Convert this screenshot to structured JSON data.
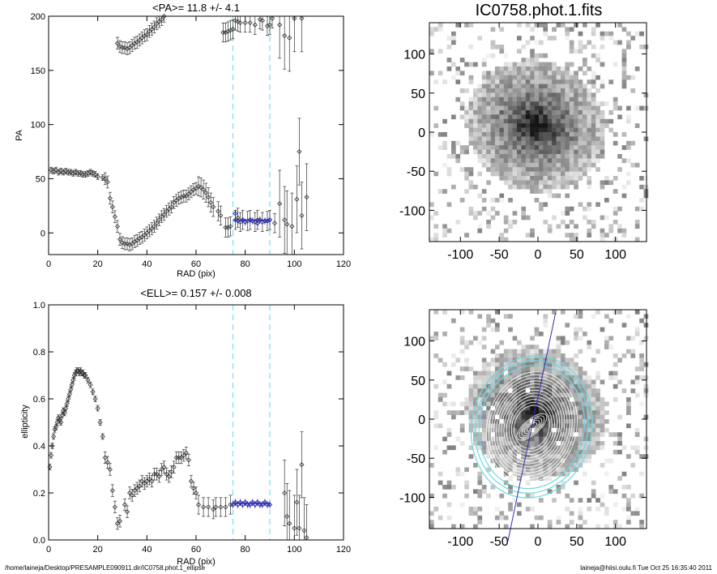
{
  "footer": {
    "path": "/home/laineja/Desktop/PRESAMPLE090911.dir/IC0758.phot.1_ellipse",
    "stamp": "laineja@hiisi.oulu.fi  Tue Oct 25 16:35:40 2011"
  },
  "colors": {
    "window_lines": "#7fe3f0",
    "fit_points": "#3030b0",
    "data_points": "#333333",
    "ellipse_contours": "#ffffff",
    "outer_ellipses": "#6fd8e0"
  },
  "chart_data": [
    {
      "id": "pa",
      "type": "scatter",
      "title": "<PA>=  11.8 +/-   4.1",
      "xlabel": "RAD (pix)",
      "ylabel": "PA",
      "xlim": [
        0,
        120
      ],
      "ylim": [
        -20,
        200
      ],
      "xticks": [
        0,
        20,
        40,
        60,
        80,
        100,
        120
      ],
      "yticks": [
        0,
        50,
        100,
        150,
        200
      ],
      "window": [
        75,
        90
      ],
      "mean": 11.8,
      "series": [
        {
          "points": [
            [
              1,
              58
            ],
            [
              2,
              57
            ],
            [
              3,
              58
            ],
            [
              4,
              56
            ],
            [
              5,
              57
            ],
            [
              6,
              56
            ],
            [
              7,
              57
            ],
            [
              8,
              56
            ],
            [
              9,
              56
            ],
            [
              10,
              55
            ],
            [
              11,
              56
            ],
            [
              12,
              55
            ],
            [
              13,
              55
            ],
            [
              14,
              54
            ],
            [
              15,
              54
            ],
            [
              16,
              55
            ],
            [
              17,
              56
            ],
            [
              18,
              55
            ],
            [
              19,
              54
            ],
            [
              20,
              52
            ],
            [
              22,
              51
            ],
            [
              23,
              50
            ],
            [
              24,
              47
            ],
            [
              25,
              32
            ],
            [
              26,
              24
            ],
            [
              27,
              15
            ],
            [
              28,
              6
            ],
            [
              29,
              -6
            ],
            [
              30,
              -9
            ],
            [
              31,
              -10
            ],
            [
              32,
              -10
            ],
            [
              33,
              -11
            ],
            [
              34,
              -10
            ],
            [
              35,
              -8
            ],
            [
              36,
              -7
            ],
            [
              37,
              -5
            ],
            [
              38,
              -4
            ],
            [
              39,
              -2
            ],
            [
              40,
              0
            ],
            [
              41,
              2
            ],
            [
              42,
              4
            ],
            [
              43,
              6
            ],
            [
              44,
              9
            ],
            [
              45,
              12
            ],
            [
              46,
              15
            ],
            [
              47,
              17
            ],
            [
              48,
              20
            ],
            [
              49,
              22
            ],
            [
              50,
              24
            ],
            [
              51,
              28
            ],
            [
              52,
              30
            ],
            [
              53,
              32
            ],
            [
              54,
              33
            ],
            [
              55,
              34
            ],
            [
              56,
              34
            ],
            [
              57,
              36
            ],
            [
              58,
              38
            ],
            [
              59,
              40
            ],
            [
              60,
              41
            ],
            [
              61,
              43
            ],
            [
              62,
              42
            ],
            [
              63,
              40
            ],
            [
              64,
              37
            ],
            [
              65,
              33
            ],
            [
              66,
              28
            ],
            [
              67,
              24
            ],
            [
              69,
              20
            ],
            [
              70,
              16
            ],
            [
              72,
              5
            ],
            [
              73,
              5
            ],
            [
              74,
              6
            ],
            [
              76,
              12
            ],
            [
              77,
              14
            ],
            [
              78,
              10
            ],
            [
              79,
              12
            ],
            [
              81,
              11
            ],
            [
              82,
              12
            ],
            [
              84,
              10
            ],
            [
              85,
              12
            ],
            [
              87,
              10
            ],
            [
              89,
              11
            ],
            [
              90,
              12
            ],
            [
              92,
              9
            ],
            [
              94,
              27
            ],
            [
              96,
              12
            ],
            [
              97,
              8
            ],
            [
              99,
              6
            ],
            [
              101,
              31
            ],
            [
              102,
              75
            ],
            [
              103,
              16
            ],
            [
              105,
              33
            ],
            [
              28,
              175
            ],
            [
              29,
              172
            ],
            [
              30,
              171
            ],
            [
              31,
              171
            ],
            [
              32,
              170
            ],
            [
              33,
              171
            ],
            [
              34,
              173
            ],
            [
              35,
              175
            ],
            [
              36,
              176
            ],
            [
              37,
              178
            ],
            [
              38,
              180
            ],
            [
              39,
              182
            ],
            [
              40,
              183
            ],
            [
              41,
              186
            ],
            [
              42,
              188
            ],
            [
              43,
              190
            ],
            [
              44,
              193
            ],
            [
              45,
              195
            ],
            [
              46,
              197
            ],
            [
              47,
              200
            ],
            [
              71,
              185
            ],
            [
              72,
              185
            ],
            [
              73,
              186
            ],
            [
              74,
              187
            ],
            [
              75,
              188
            ],
            [
              76,
              196
            ],
            [
              77,
              195
            ],
            [
              78,
              194
            ],
            [
              80,
              194
            ],
            [
              82,
              194
            ],
            [
              84,
              192
            ],
            [
              86,
              197
            ],
            [
              87,
              196
            ],
            [
              89,
              191
            ],
            [
              90,
              192
            ],
            [
              91,
              198
            ],
            [
              94,
              192
            ],
            [
              96,
              182
            ],
            [
              98,
              180
            ],
            [
              100,
              198
            ],
            [
              103,
              198
            ]
          ]
        },
        {
          "name": "fit",
          "points": [
            [
              76,
              18
            ],
            [
              77,
              11
            ],
            [
              79,
              12
            ],
            [
              80,
              10
            ],
            [
              82,
              12
            ],
            [
              83,
              11
            ],
            [
              85,
              9
            ],
            [
              86,
              12
            ],
            [
              88,
              11
            ],
            [
              89,
              11
            ],
            [
              90,
              12
            ]
          ]
        }
      ]
    },
    {
      "id": "ell",
      "type": "scatter",
      "title": "<ELL>= 0.157 +/-  0.008",
      "xlabel": "RAD (pix)",
      "ylabel": "ellipticity",
      "xlim": [
        0,
        120
      ],
      "ylim": [
        0,
        1
      ],
      "xticks": [
        0,
        20,
        40,
        60,
        80,
        100,
        120
      ],
      "yticks": [
        "0.0",
        "0.2",
        "0.4",
        "0.6",
        "0.8",
        "1.0"
      ],
      "window": [
        75,
        90
      ],
      "mean": 0.157,
      "series": [
        {
          "points": [
            [
              0.5,
              0.31
            ],
            [
              1,
              0.36
            ],
            [
              1.5,
              0.4
            ],
            [
              2,
              0.44
            ],
            [
              2.5,
              0.47
            ],
            [
              3,
              0.48
            ],
            [
              3.5,
              0.5
            ],
            [
              4,
              0.52
            ],
            [
              4.5,
              0.51
            ],
            [
              5,
              0.5
            ],
            [
              5.5,
              0.53
            ],
            [
              6,
              0.55
            ],
            [
              6.5,
              0.54
            ],
            [
              7,
              0.56
            ],
            [
              7.5,
              0.58
            ],
            [
              8,
              0.6
            ],
            [
              8.5,
              0.62
            ],
            [
              9,
              0.64
            ],
            [
              9.5,
              0.66
            ],
            [
              10,
              0.68
            ],
            [
              10.5,
              0.7
            ],
            [
              11,
              0.71
            ],
            [
              11.5,
              0.72
            ],
            [
              12,
              0.72
            ],
            [
              12.5,
              0.71
            ],
            [
              13,
              0.72
            ],
            [
              13.5,
              0.71
            ],
            [
              14,
              0.71
            ],
            [
              14.5,
              0.7
            ],
            [
              15,
              0.7
            ],
            [
              16,
              0.68
            ],
            [
              17,
              0.66
            ],
            [
              18,
              0.63
            ],
            [
              19,
              0.6
            ],
            [
              20,
              0.56
            ],
            [
              21,
              0.5
            ],
            [
              22,
              0.44
            ],
            [
              23,
              0.35
            ],
            [
              24,
              0.33
            ],
            [
              25,
              0.3
            ],
            [
              26,
              0.21
            ],
            [
              27,
              0.14
            ],
            [
              28,
              0.07
            ],
            [
              29,
              0.08
            ],
            [
              31,
              0.15
            ],
            [
              32,
              0.12
            ],
            [
              33,
              0.2
            ],
            [
              34,
              0.19
            ],
            [
              35,
              0.21
            ],
            [
              36,
              0.22
            ],
            [
              37,
              0.23
            ],
            [
              38,
              0.25
            ],
            [
              39,
              0.24
            ],
            [
              40,
              0.25
            ],
            [
              41,
              0.26
            ],
            [
              42,
              0.25
            ],
            [
              43,
              0.28
            ],
            [
              44,
              0.28
            ],
            [
              45,
              0.27
            ],
            [
              46,
              0.3
            ],
            [
              47,
              0.31
            ],
            [
              48,
              0.28
            ],
            [
              49,
              0.27
            ],
            [
              50,
              0.29
            ],
            [
              51,
              0.31
            ],
            [
              52,
              0.35
            ],
            [
              53,
              0.35
            ],
            [
              54,
              0.35
            ],
            [
              55,
              0.36
            ],
            [
              56,
              0.37
            ],
            [
              57,
              0.34
            ],
            [
              58,
              0.25
            ],
            [
              59,
              0.22
            ],
            [
              60,
              0.2
            ],
            [
              61,
              0.15
            ],
            [
              63,
              0.14
            ],
            [
              65,
              0.14
            ],
            [
              67,
              0.13
            ],
            [
              68,
              0.14
            ],
            [
              70,
              0.14
            ],
            [
              72,
              0.14
            ],
            [
              74,
              0.15
            ],
            [
              96,
              0.2
            ],
            [
              97,
              0.1
            ],
            [
              98,
              0.07
            ],
            [
              100,
              0.05
            ],
            [
              101,
              0.16
            ],
            [
              102,
              0.05
            ],
            [
              103,
              0.32
            ],
            [
              104,
              0.04
            ],
            [
              105,
              0.01
            ]
          ]
        },
        {
          "name": "fit",
          "points": [
            [
              75,
              0.15
            ],
            [
              76,
              0.16
            ],
            [
              77,
              0.15
            ],
            [
              78,
              0.16
            ],
            [
              79,
              0.15
            ],
            [
              80,
              0.16
            ],
            [
              81,
              0.15
            ],
            [
              82,
              0.15
            ],
            [
              83,
              0.16
            ],
            [
              84,
              0.15
            ],
            [
              85,
              0.16
            ],
            [
              86,
              0.15
            ],
            [
              87,
              0.15
            ],
            [
              88,
              0.16
            ],
            [
              89,
              0.15
            ],
            [
              90,
              0.15
            ]
          ]
        }
      ]
    },
    {
      "id": "image",
      "type": "heatmap",
      "title": "IC0758.phot.1.fits",
      "xlim": [
        -140,
        140
      ],
      "ylim": [
        -140,
        140
      ],
      "xticks": [
        -100,
        -50,
        0,
        50,
        100
      ],
      "yticks": [
        100,
        50,
        0,
        -50,
        -100
      ]
    },
    {
      "id": "overlay",
      "type": "heatmap",
      "xlim": [
        -140,
        140
      ],
      "ylim": [
        -140,
        140
      ],
      "xticks": [
        -100,
        -50,
        0,
        50,
        100
      ],
      "yticks": [
        100,
        50,
        0,
        -50,
        -100
      ],
      "major_axis_pa_deg": 11.8,
      "outer_ellipse": {
        "semi_major": 90,
        "ellipticity": 0.157
      }
    }
  ]
}
